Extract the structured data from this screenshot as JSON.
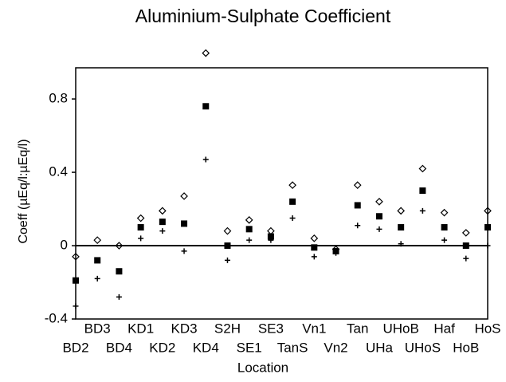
{
  "chart_data": {
    "type": "scatter",
    "title": "Aluminium-Sulphate Coefficient",
    "xlabel": "Location",
    "ylabel": "Coeff (µEq/l:µEq/l)",
    "categories": [
      "BD2",
      "BD3",
      "BD4",
      "KD1",
      "KD2",
      "KD3",
      "KD4",
      "S2H",
      "SE1",
      "SE3",
      "TanS",
      "Vn1",
      "Vn2",
      "Tan",
      "UHa",
      "UHoB",
      "UHoS",
      "Haf",
      "HoB",
      "HoS"
    ],
    "series": [
      {
        "marker": "diamond",
        "color": "#000000",
        "values": [
          -0.06,
          0.03,
          0.0,
          0.15,
          0.19,
          0.27,
          1.05,
          0.08,
          0.14,
          0.08,
          0.33,
          0.04,
          -0.02,
          0.33,
          0.24,
          0.19,
          0.42,
          0.18,
          0.07,
          0.19
        ]
      },
      {
        "marker": "square",
        "color": "#000000",
        "values": [
          -0.19,
          -0.08,
          -0.14,
          0.1,
          0.13,
          0.12,
          0.76,
          0.0,
          0.09,
          0.05,
          0.24,
          -0.01,
          -0.03,
          0.22,
          0.16,
          0.1,
          0.3,
          0.1,
          0.0,
          0.1
        ]
      },
      {
        "marker": "plus",
        "color": "#000000",
        "values": [
          -0.33,
          -0.18,
          -0.28,
          0.04,
          0.08,
          -0.03,
          0.47,
          -0.08,
          0.03,
          0.03,
          0.15,
          -0.06,
          -0.04,
          0.11,
          0.09,
          0.01,
          0.19,
          0.03,
          -0.07,
          0.0
        ]
      }
    ],
    "ylim": [
      -0.4,
      0.97
    ],
    "yticks": [
      -0.4,
      0,
      0.4,
      0.8
    ]
  }
}
